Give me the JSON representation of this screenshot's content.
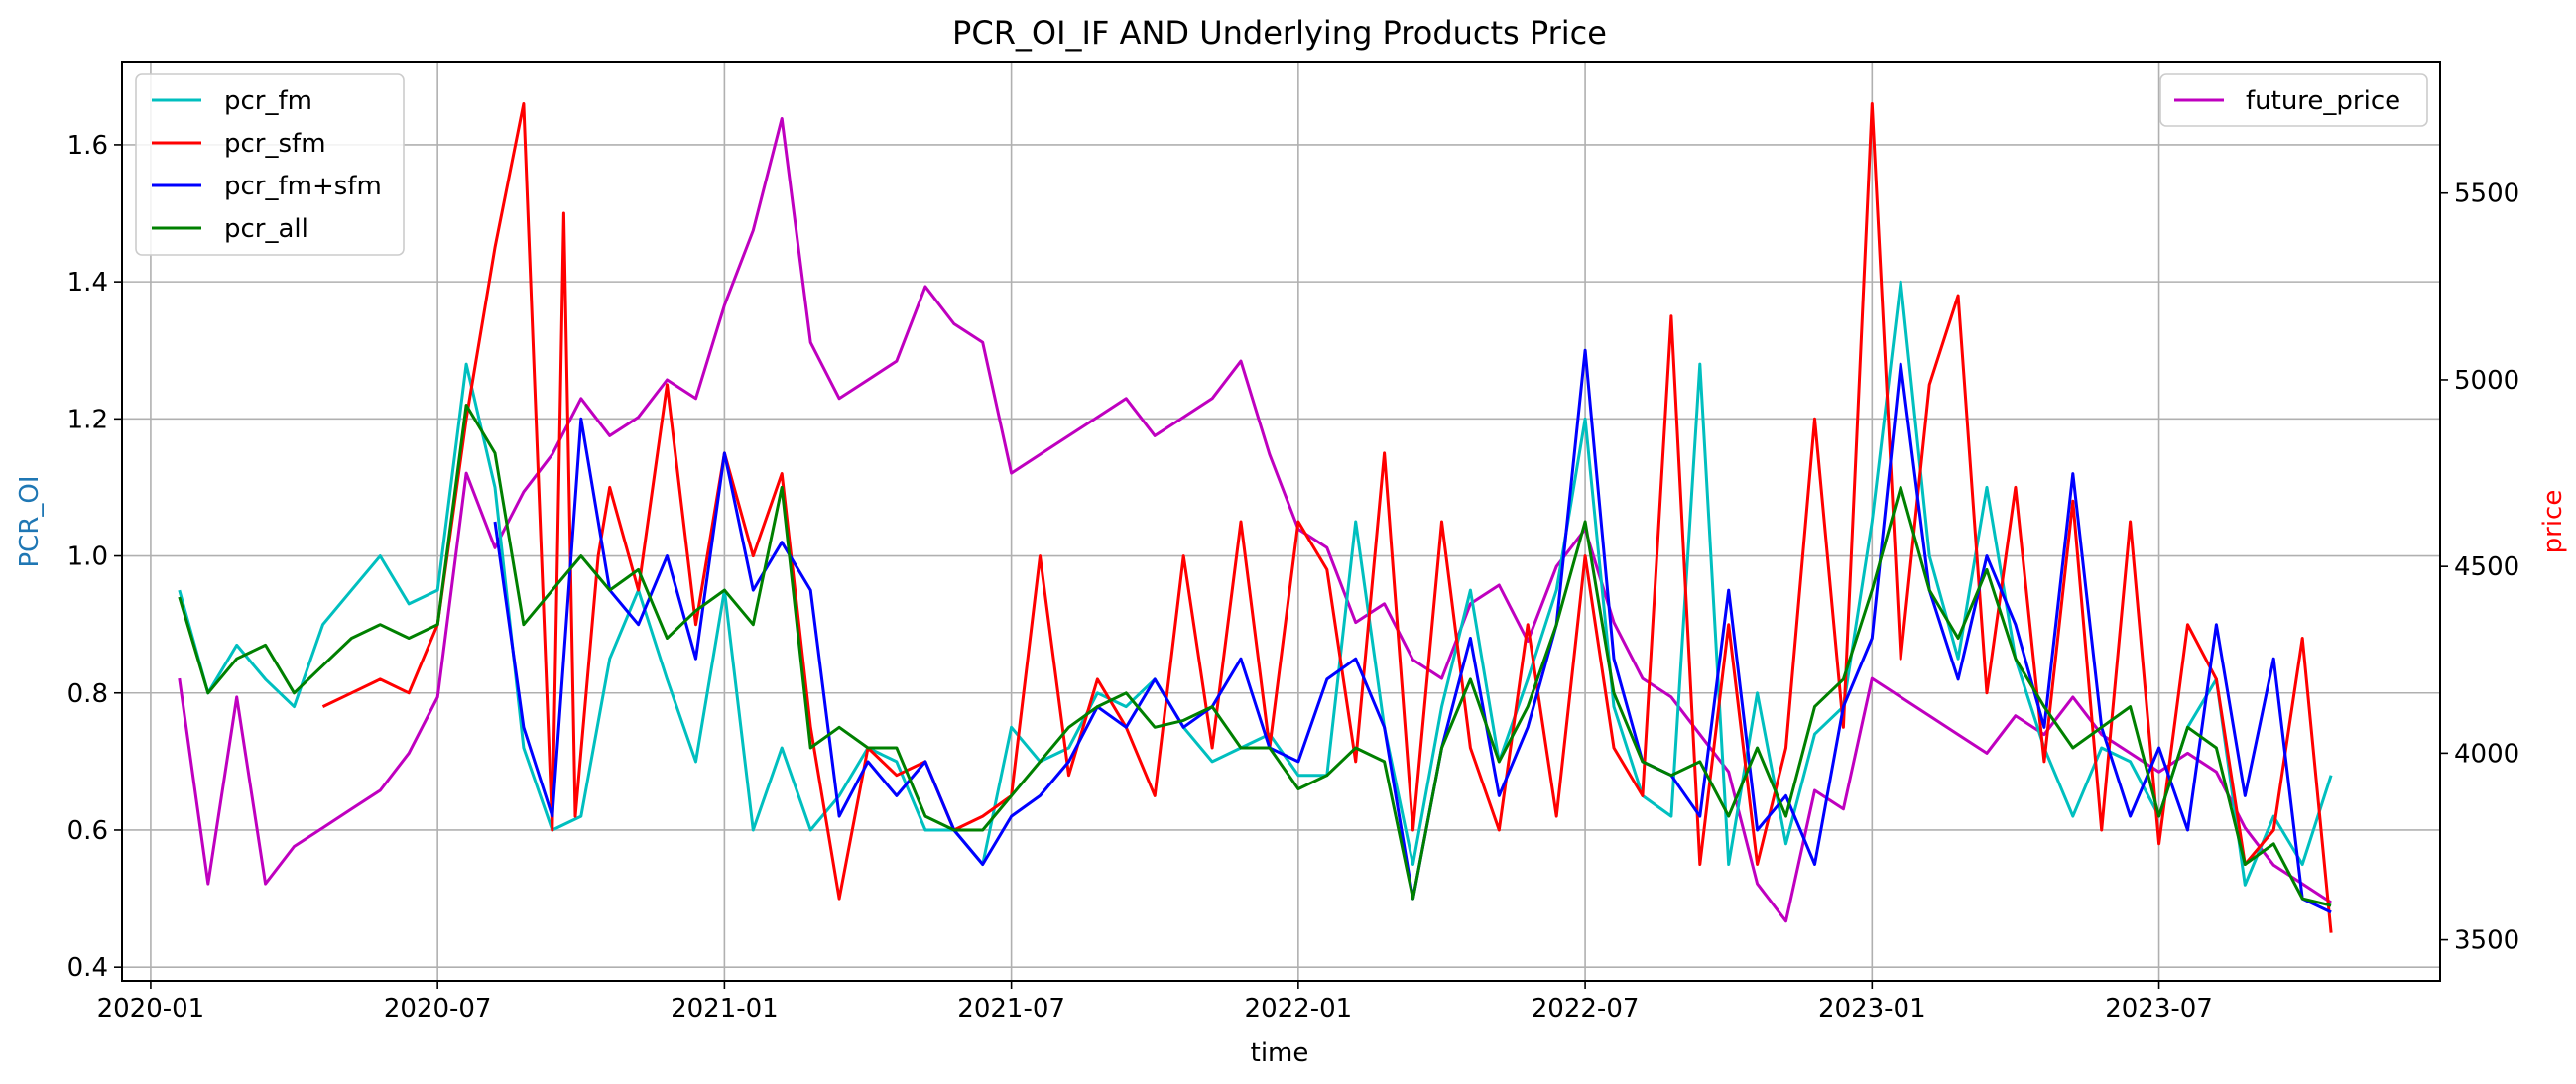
{
  "chart_data": {
    "type": "line",
    "title": "PCR_OI_IF AND Underlying Products Price",
    "xlabel": "time",
    "ylabel_left": "PCR_OI",
    "ylabel_right": "price",
    "ylabel_left_color": "#1f77b4",
    "ylabel_right_color": "#ff0000",
    "grid": true,
    "xlim": [
      2019.95,
      2023.99
    ],
    "ylim_left": [
      0.38,
      1.72
    ],
    "ylim_right": [
      3390,
      5850
    ],
    "x_ticks": [
      {
        "value": 2020.0,
        "label": "2020-01"
      },
      {
        "value": 2020.5,
        "label": "2020-07"
      },
      {
        "value": 2021.0,
        "label": "2021-01"
      },
      {
        "value": 2021.5,
        "label": "2021-07"
      },
      {
        "value": 2022.0,
        "label": "2022-01"
      },
      {
        "value": 2022.5,
        "label": "2022-07"
      },
      {
        "value": 2023.0,
        "label": "2023-01"
      },
      {
        "value": 2023.5,
        "label": "2023-07"
      }
    ],
    "y_left_ticks": [
      {
        "value": 0.4,
        "label": "0.4"
      },
      {
        "value": 0.6,
        "label": "0.6"
      },
      {
        "value": 0.8,
        "label": "0.8"
      },
      {
        "value": 1.0,
        "label": "1.0"
      },
      {
        "value": 1.2,
        "label": "1.2"
      },
      {
        "value": 1.4,
        "label": "1.4"
      },
      {
        "value": 1.6,
        "label": "1.6"
      }
    ],
    "y_right_ticks": [
      {
        "value": 3500,
        "label": "3500"
      },
      {
        "value": 4000,
        "label": "4000"
      },
      {
        "value": 4500,
        "label": "4500"
      },
      {
        "value": 5000,
        "label": "5000"
      },
      {
        "value": 5500,
        "label": "5500"
      }
    ],
    "legend_left": {
      "placement": "upper-left",
      "entries": [
        "pcr_fm",
        "pcr_sfm",
        "pcr_fm+sfm",
        "pcr_all"
      ]
    },
    "legend_right": {
      "placement": "upper-right",
      "entries": [
        "future_price"
      ]
    },
    "series": [
      {
        "name": "pcr_fm",
        "axis": "left",
        "color": "#00bfbf",
        "x": [
          2020.05,
          2020.1,
          2020.15,
          2020.2,
          2020.25,
          2020.3,
          2020.35,
          2020.4,
          2020.45,
          2020.5,
          2020.55,
          2020.6,
          2020.65,
          2020.7,
          2020.75,
          2020.8,
          2020.85,
          2020.9,
          2020.95,
          2021.0,
          2021.05,
          2021.1,
          2021.15,
          2021.2,
          2021.25,
          2021.3,
          2021.35,
          2021.4,
          2021.45,
          2021.5,
          2021.55,
          2021.6,
          2021.65,
          2021.7,
          2021.75,
          2021.8,
          2021.85,
          2021.9,
          2021.95,
          2022.0,
          2022.05,
          2022.1,
          2022.15,
          2022.2,
          2022.25,
          2022.3,
          2022.35,
          2022.4,
          2022.45,
          2022.5,
          2022.55,
          2022.6,
          2022.65,
          2022.7,
          2022.75,
          2022.8,
          2022.85,
          2022.9,
          2022.95,
          2023.0,
          2023.05,
          2023.1,
          2023.15,
          2023.2,
          2023.25,
          2023.3,
          2023.35,
          2023.4,
          2023.45,
          2023.5,
          2023.55,
          2023.6,
          2023.65,
          2023.7,
          2023.75,
          2023.8
        ],
        "values": [
          0.95,
          0.8,
          0.87,
          0.82,
          0.78,
          0.9,
          0.95,
          1.0,
          0.93,
          0.95,
          1.28,
          1.1,
          0.72,
          0.6,
          0.62,
          0.85,
          0.95,
          0.82,
          0.7,
          0.95,
          0.6,
          0.72,
          0.6,
          0.65,
          0.72,
          0.7,
          0.6,
          0.6,
          0.55,
          0.75,
          0.7,
          0.72,
          0.8,
          0.78,
          0.82,
          0.75,
          0.7,
          0.72,
          0.74,
          0.68,
          0.68,
          1.05,
          0.75,
          0.55,
          0.78,
          0.95,
          0.7,
          0.82,
          0.95,
          1.2,
          0.78,
          0.65,
          0.62,
          1.28,
          0.55,
          0.8,
          0.58,
          0.74,
          0.78,
          1.05,
          1.4,
          1.0,
          0.85,
          1.1,
          0.85,
          0.72,
          0.62,
          0.72,
          0.7,
          0.62,
          0.75,
          0.82,
          0.52,
          0.62,
          0.55,
          0.68
        ]
      },
      {
        "name": "pcr_sfm",
        "axis": "left",
        "color": "#ff0000",
        "x": [
          2020.3,
          2020.35,
          2020.4,
          2020.45,
          2020.5,
          2020.55,
          2020.6,
          2020.65,
          2020.7,
          2020.72,
          2020.74,
          2020.78,
          2020.8,
          2020.85,
          2020.9,
          2020.95,
          2021.0,
          2021.05,
          2021.1,
          2021.15,
          2021.2,
          2021.25,
          2021.3,
          2021.35,
          2021.4,
          2021.45,
          2021.5,
          2021.55,
          2021.6,
          2021.65,
          2021.7,
          2021.75,
          2021.8,
          2021.85,
          2021.9,
          2021.95,
          2022.0,
          2022.05,
          2022.1,
          2022.15,
          2022.2,
          2022.25,
          2022.3,
          2022.35,
          2022.4,
          2022.45,
          2022.5,
          2022.55,
          2022.6,
          2022.65,
          2022.7,
          2022.75,
          2022.8,
          2022.85,
          2022.9,
          2022.95,
          2023.0,
          2023.05,
          2023.1,
          2023.15,
          2023.2,
          2023.25,
          2023.3,
          2023.35,
          2023.4,
          2023.45,
          2023.5,
          2023.55,
          2023.6,
          2023.65,
          2023.7,
          2023.75,
          2023.8
        ],
        "values": [
          0.78,
          0.8,
          0.82,
          0.8,
          0.9,
          1.2,
          1.45,
          1.66,
          0.6,
          1.5,
          0.62,
          1.0,
          1.1,
          0.95,
          1.25,
          0.9,
          1.15,
          1.0,
          1.12,
          0.75,
          0.5,
          0.72,
          0.68,
          0.7,
          0.6,
          0.62,
          0.65,
          1.0,
          0.68,
          0.82,
          0.75,
          0.65,
          1.0,
          0.72,
          1.05,
          0.72,
          1.05,
          0.98,
          0.7,
          1.15,
          0.6,
          1.05,
          0.72,
          0.6,
          0.9,
          0.62,
          1.0,
          0.72,
          0.65,
          1.35,
          0.55,
          0.9,
          0.55,
          0.72,
          1.2,
          0.75,
          1.66,
          0.85,
          1.25,
          1.38,
          0.8,
          1.1,
          0.7,
          1.08,
          0.6,
          1.05,
          0.58,
          0.9,
          0.82,
          0.55,
          0.6,
          0.88,
          0.45
        ]
      },
      {
        "name": "pcr_fm+sfm",
        "axis": "left",
        "color": "#0000ff",
        "x": [
          2020.6,
          2020.65,
          2020.7,
          2020.75,
          2020.8,
          2020.85,
          2020.9,
          2020.95,
          2021.0,
          2021.05,
          2021.1,
          2021.15,
          2021.2,
          2021.25,
          2021.3,
          2021.35,
          2021.4,
          2021.45,
          2021.5,
          2021.55,
          2021.6,
          2021.65,
          2021.7,
          2021.75,
          2021.8,
          2021.85,
          2021.9,
          2021.95,
          2022.0,
          2022.05,
          2022.1,
          2022.15,
          2022.2,
          2022.25,
          2022.3,
          2022.35,
          2022.4,
          2022.45,
          2022.5,
          2022.55,
          2022.6,
          2022.65,
          2022.7,
          2022.75,
          2022.8,
          2022.85,
          2022.9,
          2022.95,
          2023.0,
          2023.05,
          2023.1,
          2023.15,
          2023.2,
          2023.25,
          2023.3,
          2023.35,
          2023.4,
          2023.45,
          2023.5,
          2023.55,
          2023.6,
          2023.65,
          2023.7,
          2023.75,
          2023.8
        ],
        "values": [
          1.05,
          0.75,
          0.62,
          1.2,
          0.95,
          0.9,
          1.0,
          0.85,
          1.15,
          0.95,
          1.02,
          0.95,
          0.62,
          0.7,
          0.65,
          0.7,
          0.6,
          0.55,
          0.62,
          0.65,
          0.7,
          0.78,
          0.75,
          0.82,
          0.75,
          0.78,
          0.85,
          0.72,
          0.7,
          0.82,
          0.85,
          0.75,
          0.5,
          0.72,
          0.88,
          0.65,
          0.75,
          0.9,
          1.3,
          0.85,
          0.7,
          0.68,
          0.62,
          0.95,
          0.6,
          0.65,
          0.55,
          0.78,
          0.88,
          1.28,
          0.95,
          0.82,
          1.0,
          0.9,
          0.75,
          1.12,
          0.75,
          0.62,
          0.72,
          0.6,
          0.9,
          0.65,
          0.85,
          0.5,
          0.48
        ]
      },
      {
        "name": "pcr_all",
        "axis": "left",
        "color": "#008000",
        "x": [
          2020.05,
          2020.1,
          2020.15,
          2020.2,
          2020.25,
          2020.3,
          2020.35,
          2020.4,
          2020.45,
          2020.5,
          2020.55,
          2020.6,
          2020.65,
          2020.7,
          2020.75,
          2020.8,
          2020.85,
          2020.9,
          2020.95,
          2021.0,
          2021.05,
          2021.1,
          2021.15,
          2021.2,
          2021.25,
          2021.3,
          2021.35,
          2021.4,
          2021.45,
          2021.5,
          2021.55,
          2021.6,
          2021.65,
          2021.7,
          2021.75,
          2021.8,
          2021.85,
          2021.9,
          2021.95,
          2022.0,
          2022.05,
          2022.1,
          2022.15,
          2022.2,
          2022.25,
          2022.3,
          2022.35,
          2022.4,
          2022.45,
          2022.5,
          2022.55,
          2022.6,
          2022.65,
          2022.7,
          2022.75,
          2022.8,
          2022.85,
          2022.9,
          2022.95,
          2023.0,
          2023.05,
          2023.1,
          2023.15,
          2023.2,
          2023.25,
          2023.3,
          2023.35,
          2023.4,
          2023.45,
          2023.5,
          2023.55,
          2023.6,
          2023.65,
          2023.7,
          2023.75,
          2023.8
        ],
        "values": [
          0.94,
          0.8,
          0.85,
          0.87,
          0.8,
          0.84,
          0.88,
          0.9,
          0.88,
          0.9,
          1.22,
          1.15,
          0.9,
          0.95,
          1.0,
          0.95,
          0.98,
          0.88,
          0.92,
          0.95,
          0.9,
          1.1,
          0.72,
          0.75,
          0.72,
          0.72,
          0.62,
          0.6,
          0.6,
          0.65,
          0.7,
          0.75,
          0.78,
          0.8,
          0.75,
          0.76,
          0.78,
          0.72,
          0.72,
          0.66,
          0.68,
          0.72,
          0.7,
          0.5,
          0.72,
          0.82,
          0.7,
          0.78,
          0.9,
          1.05,
          0.8,
          0.7,
          0.68,
          0.7,
          0.62,
          0.72,
          0.62,
          0.78,
          0.82,
          0.95,
          1.1,
          0.95,
          0.88,
          0.98,
          0.85,
          0.78,
          0.72,
          0.75,
          0.78,
          0.62,
          0.75,
          0.72,
          0.55,
          0.58,
          0.5,
          0.49
        ]
      },
      {
        "name": "future_price",
        "axis": "right",
        "color": "#bf00bf",
        "x": [
          2020.05,
          2020.1,
          2020.15,
          2020.2,
          2020.25,
          2020.3,
          2020.35,
          2020.4,
          2020.45,
          2020.5,
          2020.55,
          2020.6,
          2020.65,
          2020.7,
          2020.75,
          2020.8,
          2020.85,
          2020.9,
          2020.95,
          2021.0,
          2021.05,
          2021.1,
          2021.15,
          2021.2,
          2021.25,
          2021.3,
          2021.35,
          2021.4,
          2021.45,
          2021.5,
          2021.55,
          2021.6,
          2021.65,
          2021.7,
          2021.75,
          2021.8,
          2021.85,
          2021.9,
          2021.95,
          2022.0,
          2022.05,
          2022.1,
          2022.15,
          2022.2,
          2022.25,
          2022.3,
          2022.35,
          2022.4,
          2022.45,
          2022.5,
          2022.55,
          2022.6,
          2022.65,
          2022.7,
          2022.75,
          2022.8,
          2022.85,
          2022.9,
          2022.95,
          2023.0,
          2023.05,
          2023.1,
          2023.15,
          2023.2,
          2023.25,
          2023.3,
          2023.35,
          2023.4,
          2023.45,
          2023.5,
          2023.55,
          2023.6,
          2023.65,
          2023.7,
          2023.75,
          2023.8
        ],
        "values": [
          4200,
          3650,
          4150,
          3650,
          3750,
          3800,
          3850,
          3900,
          4000,
          4150,
          4750,
          4550,
          4700,
          4800,
          4950,
          4850,
          4900,
          5000,
          4950,
          5200,
          5400,
          5700,
          5100,
          4950,
          5000,
          5050,
          5250,
          5150,
          5100,
          4750,
          4800,
          4850,
          4900,
          4950,
          4850,
          4900,
          4950,
          5050,
          4800,
          4600,
          4550,
          4350,
          4400,
          4250,
          4200,
          4400,
          4450,
          4300,
          4500,
          4600,
          4350,
          4200,
          4150,
          4050,
          3950,
          3650,
          3550,
          3900,
          3850,
          4200,
          4150,
          4100,
          4050,
          4000,
          4100,
          4050,
          4150,
          4050,
          4000,
          3950,
          4000,
          3950,
          3800,
          3700,
          3650,
          3600
        ]
      }
    ]
  }
}
